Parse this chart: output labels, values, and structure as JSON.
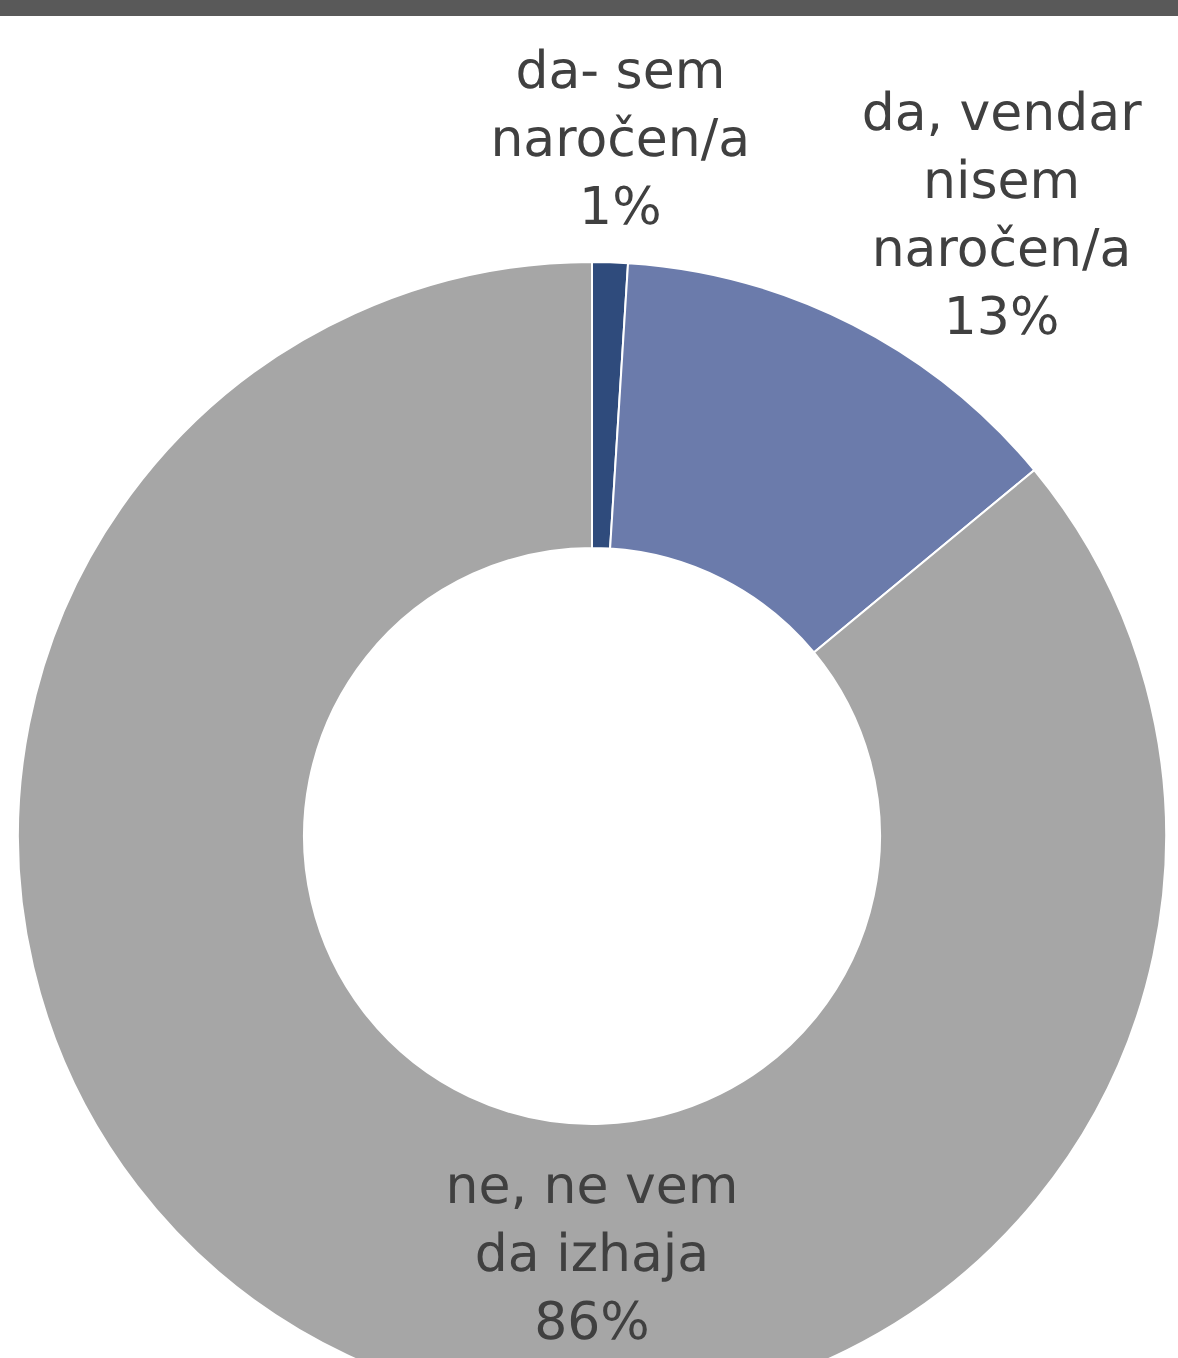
{
  "chart_data": {
    "type": "donut",
    "categories": [
      "da- sem naročen/a",
      "da, vendar nisem naročen/a",
      "ne, ne vem da izhaja"
    ],
    "values": [
      1,
      13,
      86
    ],
    "colors": [
      "#2f4b7c",
      "#6b7bab",
      "#a6a6a6"
    ],
    "value_labels": [
      "1%",
      "13%",
      "86%"
    ]
  }
}
